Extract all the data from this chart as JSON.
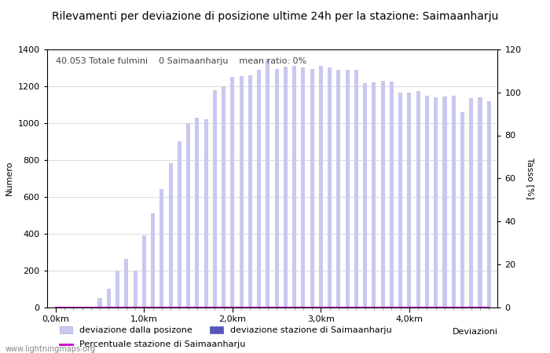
{
  "title": "Rilevamenti per deviazione di posizione ultime 24h per la stazione: Saimaanharju",
  "subtitle": "40.053 Totale fulmini    0 Saimaanharju    mean ratio: 0%",
  "ylabel_left": "Numero",
  "ylabel_right": "Tasso [%]",
  "xlabel": "Deviazioni",
  "ylim_left": [
    0,
    1400
  ],
  "ylim_right": [
    0,
    120
  ],
  "yticks_left": [
    0,
    200,
    400,
    600,
    800,
    1000,
    1200,
    1400
  ],
  "yticks_right": [
    0,
    20,
    40,
    60,
    80,
    100,
    120
  ],
  "xtick_labels": [
    "0,0km",
    "1,0km",
    "2,0km",
    "3,0km",
    "4,0km"
  ],
  "xtick_positions": [
    0,
    10,
    20,
    30,
    40
  ],
  "bar_color_light": "#c8c8f0",
  "bar_color_dark": "#5555bb",
  "line_color": "#cc00cc",
  "background_color": "#ffffff",
  "grid_color": "#cccccc",
  "bar_values": [
    0,
    0,
    0,
    0,
    0,
    50,
    100,
    200,
    260,
    200,
    390,
    510,
    640,
    780,
    900,
    1000,
    1030,
    1020,
    1180,
    1200,
    1250,
    1255,
    1260,
    1290,
    1350,
    1295,
    1305,
    1310,
    1300,
    1295,
    1310,
    1300,
    1290,
    1290,
    1290,
    1215,
    1220,
    1230,
    1225,
    1165,
    1165,
    1175,
    1150,
    1140,
    1145,
    1150,
    1060,
    1135,
    1140,
    1120
  ],
  "station_values": [
    0,
    0,
    0,
    0,
    0,
    0,
    0,
    0,
    0,
    0,
    0,
    0,
    0,
    0,
    0,
    0,
    0,
    0,
    0,
    0,
    0,
    0,
    0,
    0,
    0,
    0,
    0,
    0,
    0,
    0,
    0,
    0,
    0,
    0,
    0,
    0,
    0,
    0,
    0,
    0,
    0,
    0,
    0,
    0,
    0,
    0,
    0,
    0,
    0,
    0
  ],
  "percentage_values": [
    0,
    0,
    0,
    0,
    0,
    0,
    0,
    0,
    0,
    0,
    0,
    0,
    0,
    0,
    0,
    0,
    0,
    0,
    0,
    0,
    0,
    0,
    0,
    0,
    0,
    0,
    0,
    0,
    0,
    0,
    0,
    0,
    0,
    0,
    0,
    0,
    0,
    0,
    0,
    0,
    0,
    0,
    0,
    0,
    0,
    0,
    0,
    0,
    0,
    0
  ],
  "legend_label1": "deviazione dalla posizone",
  "legend_label2": "deviazione stazione di Saimaanharju",
  "legend_label3": "Percentuale stazione di Saimaanharju",
  "watermark": "www.lightningmaps.org",
  "title_fontsize": 10,
  "axis_fontsize": 8,
  "tick_fontsize": 8,
  "legend_fontsize": 8,
  "subtitle_fontsize": 8
}
